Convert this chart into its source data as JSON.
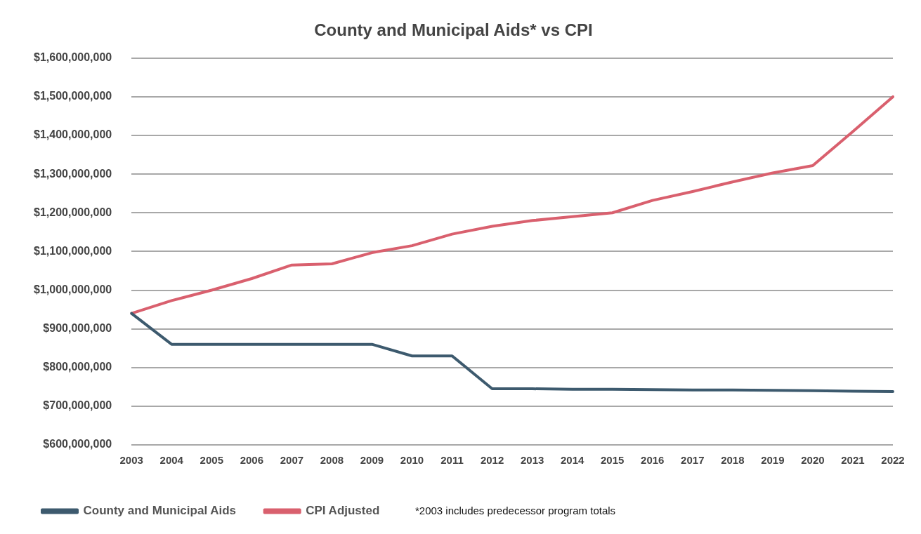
{
  "chart_data": {
    "type": "line",
    "title": "County and Municipal Aids* vs CPI",
    "categories": [
      "2003",
      "2004",
      "2005",
      "2006",
      "2007",
      "2008",
      "2009",
      "2010",
      "2011",
      "2012",
      "2013",
      "2014",
      "2015",
      "2016",
      "2017",
      "2018",
      "2019",
      "2020",
      "2021",
      "2022"
    ],
    "series": [
      {
        "name": "County and Municipal Aids",
        "color": "#3d5a6e",
        "values": [
          940000000,
          860000000,
          860000000,
          860000000,
          860000000,
          860000000,
          860000000,
          830000000,
          830000000,
          745000000,
          745000000,
          744000000,
          744000000,
          743000000,
          742000000,
          742000000,
          741000000,
          740000000,
          739000000,
          738000000
        ]
      },
      {
        "name": "CPI Adjusted",
        "color": "#d9606e",
        "values": [
          940000000,
          973000000,
          1000000000,
          1030000000,
          1065000000,
          1068000000,
          1097000000,
          1115000000,
          1145000000,
          1165000000,
          1180000000,
          1190000000,
          1200000000,
          1232000000,
          1255000000,
          1280000000,
          1303000000,
          1322000000,
          1410000000,
          1500000000
        ]
      }
    ],
    "ylim": [
      600000000,
      1600000000
    ],
    "yticks": [
      {
        "value": 600000000,
        "label": "$600,000,000"
      },
      {
        "value": 700000000,
        "label": "$700,000,000"
      },
      {
        "value": 800000000,
        "label": "$800,000,000"
      },
      {
        "value": 900000000,
        "label": "$900,000,000"
      },
      {
        "value": 1000000000,
        "label": "$1,000,000,000"
      },
      {
        "value": 1100000000,
        "label": "$1,100,000,000"
      },
      {
        "value": 1200000000,
        "label": "$1,200,000,000"
      },
      {
        "value": 1300000000,
        "label": "$1,300,000,000"
      },
      {
        "value": 1400000000,
        "label": "$1,400,000,000"
      },
      {
        "value": 1500000000,
        "label": "$1,500,000,000"
      },
      {
        "value": 1600000000,
        "label": "$1,600,000,000"
      }
    ],
    "grid": "y",
    "legend": "bottom",
    "marker": "none",
    "line_style": "solid",
    "annotations": [
      "*2003 includes predecessor program totals"
    ]
  }
}
